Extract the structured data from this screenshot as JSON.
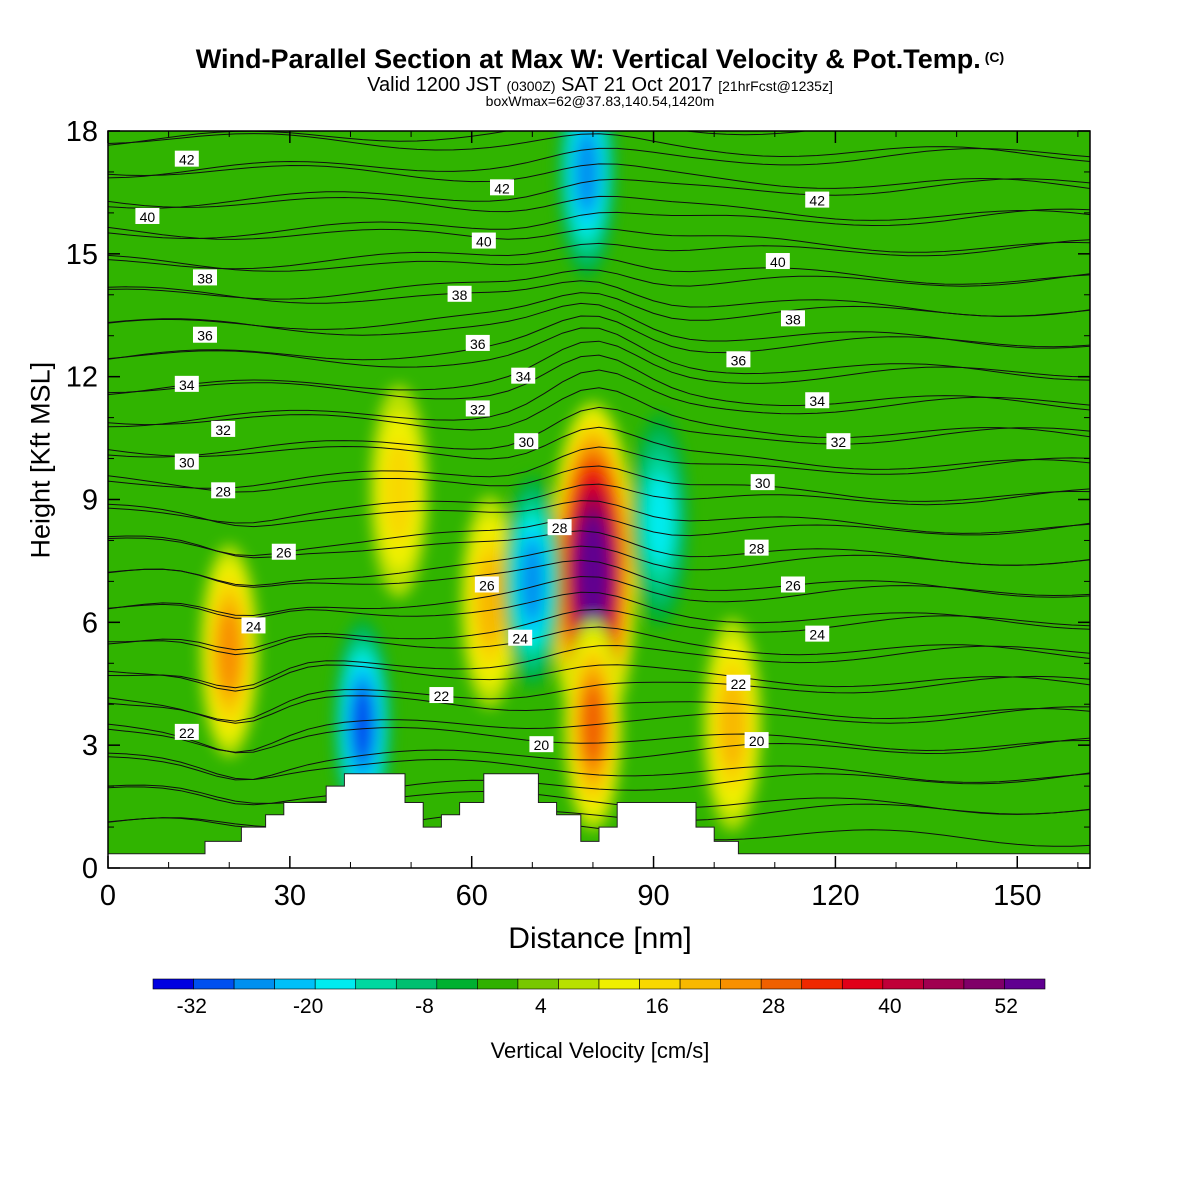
{
  "title": "Wind-Parallel Section at Max W: Vertical Velocity & Pot.Temp.",
  "title_mark": "(C)",
  "subtitle_a": "Valid 1200 JST",
  "subtitle_z": "(0300Z)",
  "subtitle_b": "SAT 21 Oct 2017",
  "subtitle_fcst": "[21hrFcst@1235z]",
  "subtitle2": "boxWmax=62@37.83,140.54,1420m",
  "chart_data": {
    "type": "heatmap",
    "xlabel": "Distance [nm]",
    "ylabel": "Height [Kft MSL]",
    "xlim": [
      0,
      162
    ],
    "ylim": [
      0,
      18
    ],
    "x_ticks": [
      0,
      30,
      60,
      90,
      120,
      150
    ],
    "y_ticks": [
      0,
      3,
      6,
      9,
      12,
      15,
      18
    ],
    "colorbar": {
      "label": "Vertical Velocity [cm/s]",
      "tick_labels": [
        -32,
        -20,
        -8,
        4,
        16,
        28,
        40,
        52
      ],
      "range": [
        -36,
        56
      ],
      "colors": [
        "#0000e0",
        "#0050f0",
        "#0090f0",
        "#00c0f8",
        "#00ecf0",
        "#00d8a0",
        "#00c070",
        "#00b030",
        "#30b000",
        "#78c800",
        "#b8e000",
        "#f0f000",
        "#f8d800",
        "#f8b800",
        "#f89000",
        "#f06000",
        "#f02800",
        "#e00018",
        "#c00038",
        "#a00050",
        "#800068",
        "#600090"
      ]
    },
    "w_field": [
      {
        "x": 80,
        "z": 7.2,
        "w": 62
      },
      {
        "x": 80,
        "z": 3.5,
        "w": 30
      },
      {
        "x": 63,
        "z": 6.5,
        "w": 20
      },
      {
        "x": 48,
        "z": 9.2,
        "w": 18
      },
      {
        "x": 20,
        "z": 5.3,
        "w": 24
      },
      {
        "x": 103,
        "z": 3.5,
        "w": 22
      },
      {
        "x": 42,
        "z": 3.5,
        "w": -30
      },
      {
        "x": 70,
        "z": 7.0,
        "w": -26
      },
      {
        "x": 79,
        "z": 17.0,
        "w": -26
      },
      {
        "x": 91,
        "z": 8.5,
        "w": -16
      }
    ],
    "theta_labels": [
      {
        "x": 13,
        "z": 17.3,
        "text": "42"
      },
      {
        "x": 6.5,
        "z": 15.9,
        "text": "40"
      },
      {
        "x": 16,
        "z": 14.4,
        "text": "38"
      },
      {
        "x": 16,
        "z": 13.0,
        "text": "36"
      },
      {
        "x": 13,
        "z": 11.8,
        "text": "34"
      },
      {
        "x": 19,
        "z": 10.7,
        "text": "32"
      },
      {
        "x": 13,
        "z": 9.9,
        "text": "30"
      },
      {
        "x": 19,
        "z": 9.2,
        "text": "28"
      },
      {
        "x": 29,
        "z": 7.7,
        "text": "26"
      },
      {
        "x": 24,
        "z": 5.9,
        "text": "24"
      },
      {
        "x": 13,
        "z": 3.3,
        "text": "22"
      },
      {
        "x": 65,
        "z": 16.6,
        "text": "42"
      },
      {
        "x": 62,
        "z": 15.3,
        "text": "40"
      },
      {
        "x": 58,
        "z": 14.0,
        "text": "38"
      },
      {
        "x": 61,
        "z": 12.8,
        "text": "36"
      },
      {
        "x": 68.5,
        "z": 12.0,
        "text": "34"
      },
      {
        "x": 61,
        "z": 11.2,
        "text": "32"
      },
      {
        "x": 69,
        "z": 10.4,
        "text": "30"
      },
      {
        "x": 74.5,
        "z": 8.3,
        "text": "28"
      },
      {
        "x": 62.5,
        "z": 6.9,
        "text": "26"
      },
      {
        "x": 68,
        "z": 5.6,
        "text": "24"
      },
      {
        "x": 55,
        "z": 4.2,
        "text": "22"
      },
      {
        "x": 71.5,
        "z": 3.0,
        "text": "20"
      },
      {
        "x": 117,
        "z": 16.3,
        "text": "42"
      },
      {
        "x": 110.5,
        "z": 14.8,
        "text": "40"
      },
      {
        "x": 113,
        "z": 13.4,
        "text": "38"
      },
      {
        "x": 104,
        "z": 12.4,
        "text": "36"
      },
      {
        "x": 117,
        "z": 11.4,
        "text": "34"
      },
      {
        "x": 120.5,
        "z": 10.4,
        "text": "32"
      },
      {
        "x": 108,
        "z": 9.4,
        "text": "30"
      },
      {
        "x": 107,
        "z": 7.8,
        "text": "28"
      },
      {
        "x": 113,
        "z": 6.9,
        "text": "26"
      },
      {
        "x": 117,
        "z": 5.7,
        "text": "24"
      },
      {
        "x": 104,
        "z": 4.5,
        "text": "22"
      },
      {
        "x": 107,
        "z": 3.1,
        "text": "20"
      }
    ],
    "terrain_nm_kft": [
      [
        0,
        0.35
      ],
      [
        16,
        0.35
      ],
      [
        16,
        0.65
      ],
      [
        22,
        0.65
      ],
      [
        22,
        1.0
      ],
      [
        26,
        1.0
      ],
      [
        26,
        1.3
      ],
      [
        29,
        1.3
      ],
      [
        29,
        1.6
      ],
      [
        36,
        1.6
      ],
      [
        36,
        2.0
      ],
      [
        39,
        2.0
      ],
      [
        39,
        2.3
      ],
      [
        49,
        2.3
      ],
      [
        49,
        1.6
      ],
      [
        52,
        1.6
      ],
      [
        52,
        1.0
      ],
      [
        55,
        1.0
      ],
      [
        55,
        1.3
      ],
      [
        58,
        1.3
      ],
      [
        58,
        1.6
      ],
      [
        62,
        1.6
      ],
      [
        62,
        2.3
      ],
      [
        71,
        2.3
      ],
      [
        71,
        1.6
      ],
      [
        74,
        1.6
      ],
      [
        74,
        1.3
      ],
      [
        78,
        1.3
      ],
      [
        78,
        0.65
      ],
      [
        81,
        0.65
      ],
      [
        81,
        1.0
      ],
      [
        84,
        1.0
      ],
      [
        84,
        1.6
      ],
      [
        97,
        1.6
      ],
      [
        97,
        1.0
      ],
      [
        100,
        1.0
      ],
      [
        100,
        0.65
      ],
      [
        104,
        0.65
      ],
      [
        104,
        0.35
      ],
      [
        162,
        0.35
      ]
    ]
  }
}
